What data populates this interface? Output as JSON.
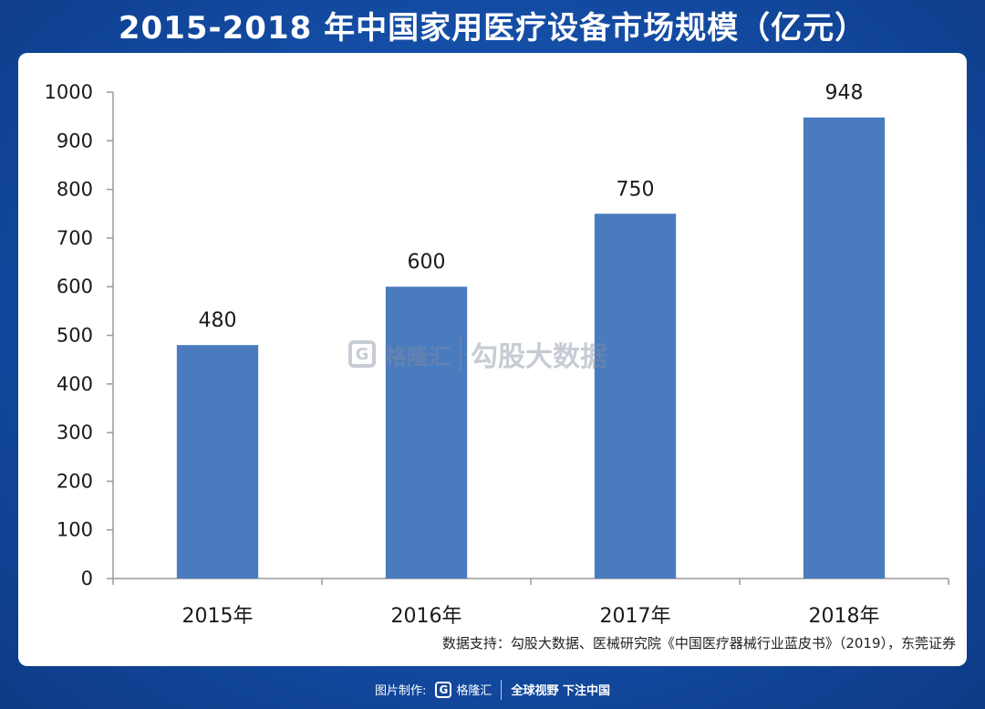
{
  "title": "2015-2018 年中国家用医疗设备市场规模（亿元）",
  "chart_data": {
    "type": "bar",
    "title": "2015-2018 年中国家用医疗设备市场规模（亿元）",
    "categories": [
      "2015年",
      "2016年",
      "2017年",
      "2018年"
    ],
    "values": [
      480,
      600,
      750,
      948
    ],
    "data_labels": [
      "480",
      "600",
      "750",
      "948"
    ],
    "ylim": [
      0,
      1000
    ],
    "yticks": [
      0,
      100,
      200,
      300,
      400,
      500,
      600,
      700,
      800,
      900,
      1000
    ],
    "xlabel": "",
    "ylabel": "",
    "grid": false,
    "bar_color": "#4a7bbf"
  },
  "source": "数据支持：勾股大数据、医械研究院《中国医疗器械行业蓝皮书》（2019），东莞证券",
  "watermark": {
    "logo_letter": "G",
    "brand": "格隆汇",
    "text": "勾股大数据"
  },
  "footer": {
    "made_by_label": "图片制作:",
    "logo_letter": "G",
    "brand": "格隆汇",
    "slogan": "全球视野 下注中国"
  },
  "colors": {
    "background": "#1550aa",
    "bar": "#4a7bbf",
    "axis": "#9a9a9a"
  }
}
